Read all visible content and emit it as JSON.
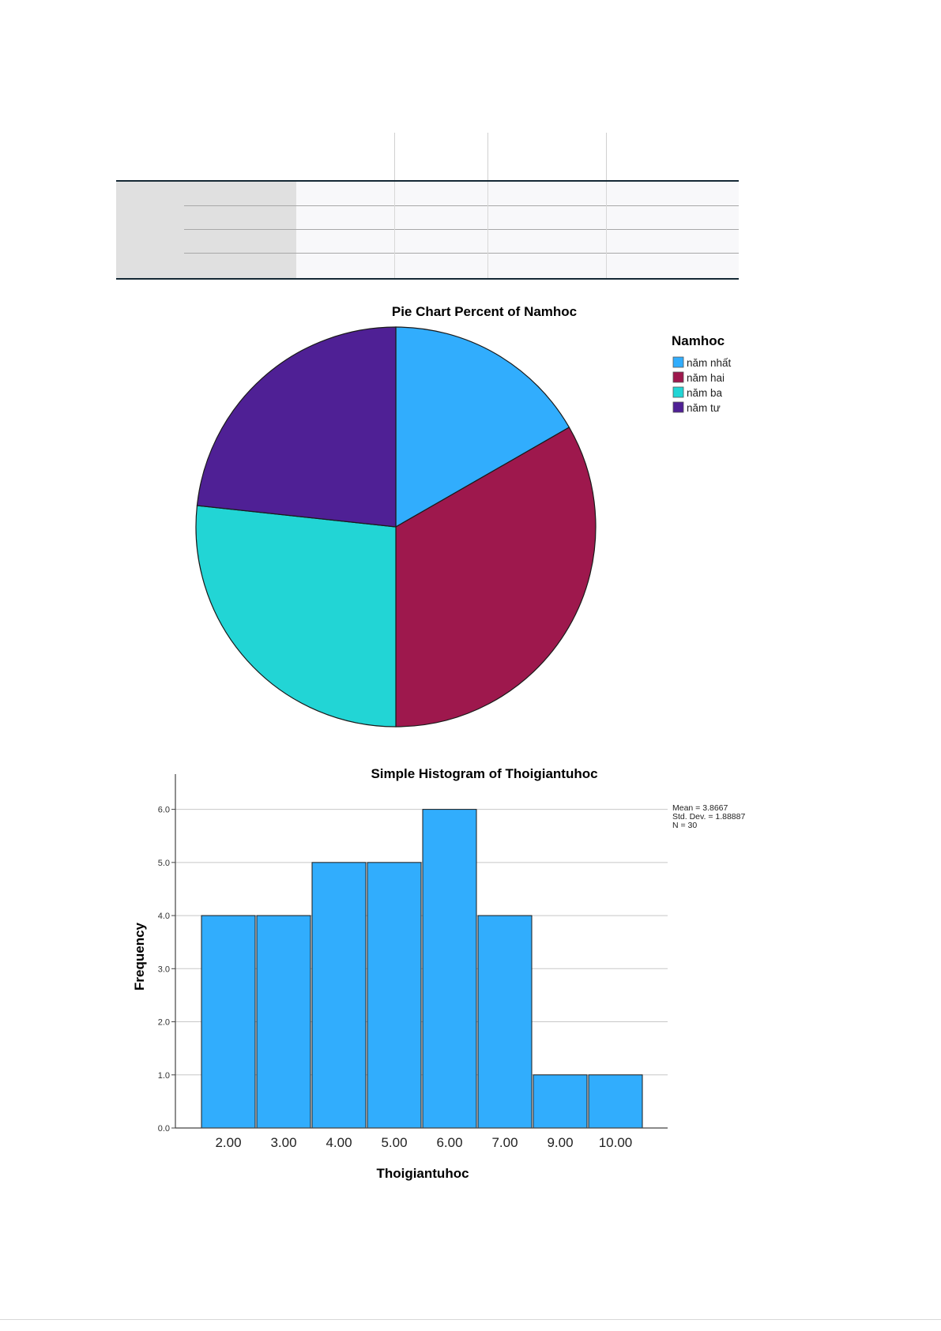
{
  "chart_data": [
    {
      "type": "pie",
      "title": "Pie Chart Percent of Namhoc",
      "legend_title": "Namhoc",
      "legend_position": "top-right",
      "categories": [
        "năm nhất",
        "năm hai",
        "năm ba",
        "năm tư"
      ],
      "values": [
        16.7,
        33.3,
        26.7,
        23.3
      ],
      "colors": [
        "#31adfd",
        "#9e184d",
        "#22d5d5",
        "#4f2095"
      ]
    },
    {
      "type": "bar",
      "subtype": "histogram",
      "title": "Simple Histogram of Thoigiantuhoc",
      "xlabel": "Thoigiantuhoc",
      "ylabel": "Frequency",
      "categories": [
        "2.00",
        "3.00",
        "4.00",
        "5.00",
        "6.00",
        "7.00",
        "9.00",
        "10.00"
      ],
      "values": [
        4,
        4,
        5,
        5,
        6,
        4,
        1,
        1
      ],
      "ylim": [
        0,
        6.5
      ],
      "yticks": [
        "0.0",
        "1.0",
        "2.0",
        "3.0",
        "4.0",
        "5.0",
        "6.0"
      ],
      "grid": true,
      "bar_color": "#31adfd",
      "stats": [
        "Mean = 3.8667",
        "Std. Dev. = 1.88887",
        "N = 30"
      ]
    }
  ]
}
